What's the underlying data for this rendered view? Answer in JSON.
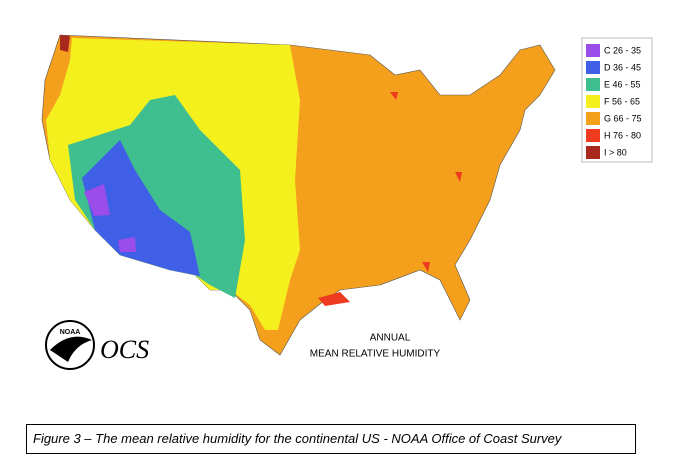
{
  "map": {
    "annotation": [
      "ANNUAL",
      "MEAN RELATIVE HUMIDITY"
    ],
    "logo": {
      "emblem": "NOAA",
      "text": "OCS"
    },
    "legend": [
      {
        "label": "C 26 - 35",
        "color": "#9b4dea"
      },
      {
        "label": "D 36 - 45",
        "color": "#3f5fe6"
      },
      {
        "label": "E 46 - 55",
        "color": "#3fbf8f"
      },
      {
        "label": "F 56 - 65",
        "color": "#f4f01e"
      },
      {
        "label": "G 66 - 75",
        "color": "#f5a01c"
      },
      {
        "label": "H 76 - 80",
        "color": "#ee3a1e"
      },
      {
        "label": "I > 80",
        "color": "#a8281c"
      }
    ]
  },
  "caption": "Figure 3 – The mean relative humidity for the continental US - NOAA Office of Coast Survey"
}
